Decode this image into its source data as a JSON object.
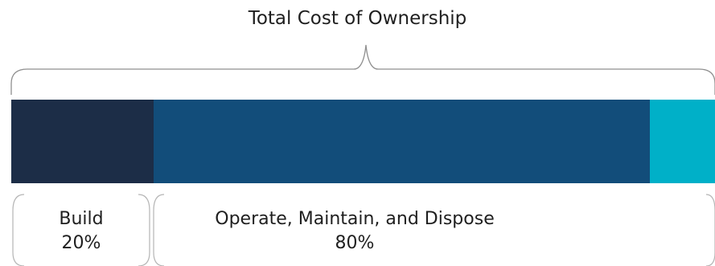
{
  "title": "Total Cost of Ownership",
  "colors": {
    "build": "#1c2d47",
    "operate": "#124d7a",
    "dispose": "#00b0c8",
    "bracket": "#8f8f8f"
  },
  "chart_data": {
    "type": "bar",
    "title": "Total Cost of Ownership",
    "stacked": true,
    "orientation": "horizontal",
    "segments": [
      {
        "name": "Build",
        "value": 20,
        "color": "#1c2d47"
      },
      {
        "name": "Operate, Maintain, and Dispose",
        "value": 80,
        "color": "#124d7a"
      }
    ]
  },
  "groups": {
    "build": {
      "label": "Build",
      "percent": "20%"
    },
    "operate": {
      "label": "Operate, Maintain, and Dispose",
      "percent": "80%"
    }
  }
}
